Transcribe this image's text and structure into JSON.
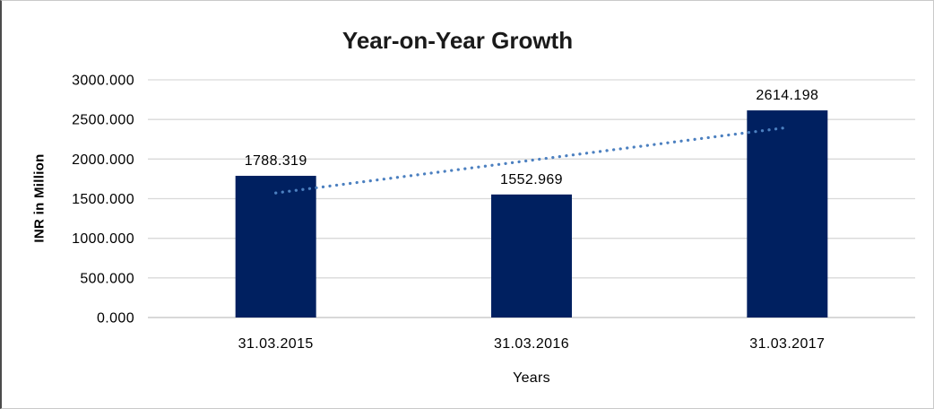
{
  "window": {
    "background": "#ffffff",
    "border_color": "#c9c9c9",
    "left_edge_color": "#4b4b4b"
  },
  "chart_data": {
    "type": "bar",
    "title": "Year-on-Year Growth",
    "categories": [
      "31.03.2015",
      "31.03.2016",
      "31.03.2017"
    ],
    "values": [
      1788.319,
      1552.969,
      2614.198
    ],
    "data_labels": [
      "1788.319",
      "1552.969",
      "2614.198"
    ],
    "xlabel": "Years",
    "ylabel": "INR in Million",
    "ylim": [
      0,
      3000
    ],
    "ytick_step": 500,
    "ytick_labels": [
      "0.000",
      "500.000",
      "1000.000",
      "1500.000",
      "2000.000",
      "2500.000",
      "3000.000"
    ],
    "grid": true,
    "legend": "none",
    "colors": {
      "bar": "#002060",
      "trendline": "#4c80c0",
      "gridline": "#d9d9d9",
      "axis_line": "#c0c0c0",
      "text": "#000000",
      "title": "#1a1a1a"
    },
    "trendline": {
      "type": "linear",
      "style": "dotted"
    }
  }
}
